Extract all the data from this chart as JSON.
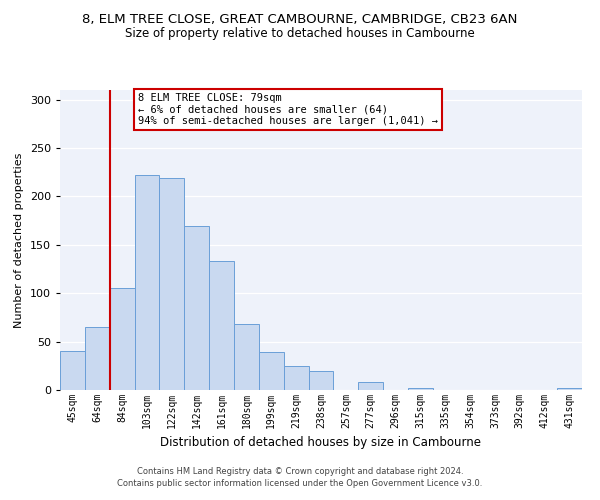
{
  "title": "8, ELM TREE CLOSE, GREAT CAMBOURNE, CAMBRIDGE, CB23 6AN",
  "subtitle": "Size of property relative to detached houses in Cambourne",
  "xlabel": "Distribution of detached houses by size in Cambourne",
  "ylabel": "Number of detached properties",
  "bar_labels": [
    "45sqm",
    "64sqm",
    "84sqm",
    "103sqm",
    "122sqm",
    "142sqm",
    "161sqm",
    "180sqm",
    "199sqm",
    "219sqm",
    "238sqm",
    "257sqm",
    "277sqm",
    "296sqm",
    "315sqm",
    "335sqm",
    "354sqm",
    "373sqm",
    "392sqm",
    "412sqm",
    "431sqm"
  ],
  "bar_values": [
    40,
    65,
    105,
    222,
    219,
    169,
    133,
    68,
    39,
    25,
    20,
    0,
    8,
    0,
    2,
    0,
    0,
    0,
    0,
    0,
    2
  ],
  "bar_color": "#c9d9f0",
  "bar_edge_color": "#6a9fd8",
  "vline_x_index": 1.5,
  "vline_color": "#cc0000",
  "ylim": [
    0,
    310
  ],
  "yticks": [
    0,
    50,
    100,
    150,
    200,
    250,
    300
  ],
  "annotation_title": "8 ELM TREE CLOSE: 79sqm",
  "annotation_line1": "← 6% of detached houses are smaller (64)",
  "annotation_line2": "94% of semi-detached houses are larger (1,041) →",
  "annotation_box_color": "#cc0000",
  "footer_line1": "Contains HM Land Registry data © Crown copyright and database right 2024.",
  "footer_line2": "Contains public sector information licensed under the Open Government Licence v3.0.",
  "bg_color": "#eef2fa",
  "title_fontsize": 9.5,
  "subtitle_fontsize": 8.5,
  "ylabel_fontsize": 8,
  "xlabel_fontsize": 8.5,
  "tick_fontsize": 7,
  "annot_fontsize": 7.5,
  "footer_fontsize": 6
}
